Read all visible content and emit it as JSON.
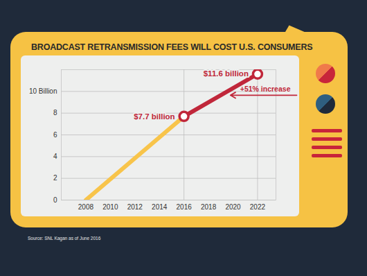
{
  "chart_data": {
    "type": "line",
    "title": "BROADCAST RETRANSMISSION FEES WILL COST U.S. CONSUMERS",
    "source": "Source: SNL Kagan as of June 2016",
    "x": [
      2008,
      2016,
      2022
    ],
    "series": [
      {
        "color": "#f8c44a",
        "values": [
          0,
          7.7,
          null
        ]
      },
      {
        "color": "#c0273a",
        "values": [
          null,
          7.7,
          11.6
        ],
        "marker": "circle",
        "data_labels": true,
        "value_labels": [
          null,
          "$7.7 billion",
          "$11.6 billion"
        ]
      }
    ],
    "annotations": [
      {
        "text": "+51% increase"
      }
    ],
    "xlim": [
      2006,
      2023.5
    ],
    "xticks": [
      2008,
      2010,
      2012,
      2014,
      2016,
      2018,
      2020,
      2022
    ],
    "ylim": [
      0,
      12
    ],
    "yticks": [
      0,
      2,
      4,
      6,
      8,
      {
        "value": 10,
        "label": "10 Billion"
      }
    ],
    "grid": true
  }
}
